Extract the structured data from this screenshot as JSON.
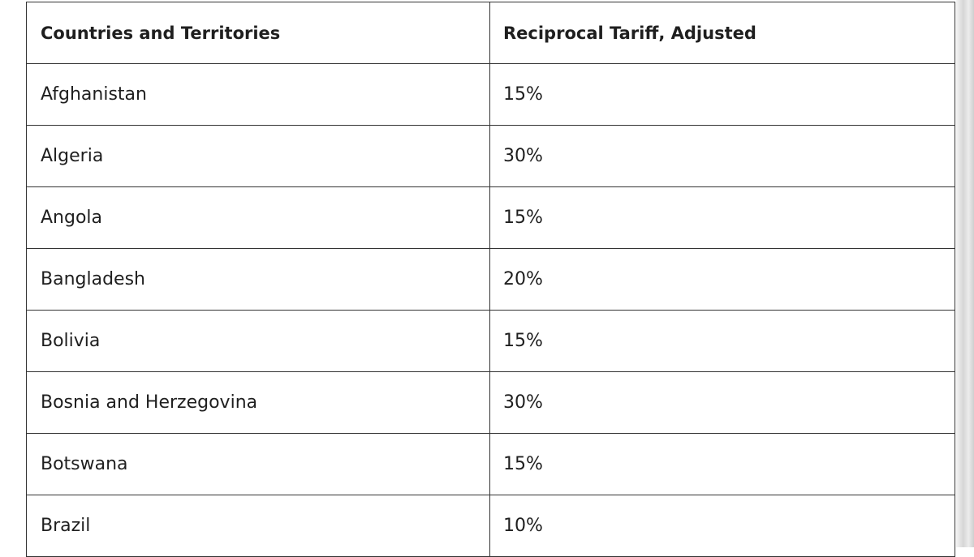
{
  "table": {
    "headers": [
      "Countries and Territories",
      "Reciprocal Tariff, Adjusted"
    ],
    "rows": [
      [
        "Afghanistan",
        "15%"
      ],
      [
        "Algeria",
        "30%"
      ],
      [
        "Angola",
        "15%"
      ],
      [
        "Bangladesh",
        "20%"
      ],
      [
        "Bolivia",
        "15%"
      ],
      [
        "Bosnia and Herzegovina",
        "30%"
      ],
      [
        "Botswana",
        "15%"
      ],
      [
        "Brazil",
        "10%"
      ]
    ]
  }
}
